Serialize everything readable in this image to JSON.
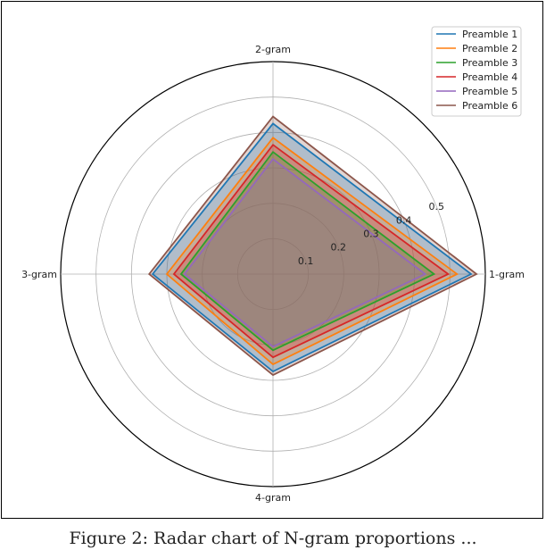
{
  "caption": "Figure 2: Radar chart of N-gram proportions ...",
  "chart_data": {
    "type": "radar",
    "title": "",
    "axes": [
      "1-gram",
      "2-gram",
      "3-gram",
      "4-gram"
    ],
    "radial_ticks": [
      "0.1",
      "0.2",
      "0.3",
      "0.4",
      "0.5"
    ],
    "radial_tick_values": [
      0.1,
      0.2,
      0.3,
      0.4,
      0.5
    ],
    "rmax": 0.6,
    "grid": true,
    "legend_position": "top-right",
    "series": [
      {
        "name": "Preamble 1",
        "color": "#1f77b4",
        "values": [
          0.56,
          0.425,
          0.34,
          0.275
        ]
      },
      {
        "name": "Preamble 2",
        "color": "#ff7f0e",
        "values": [
          0.52,
          0.385,
          0.3,
          0.255
        ]
      },
      {
        "name": "Preamble 3",
        "color": "#2ca02c",
        "values": [
          0.455,
          0.345,
          0.26,
          0.215
        ]
      },
      {
        "name": "Preamble 4",
        "color": "#d62728",
        "values": [
          0.495,
          0.365,
          0.28,
          0.235
        ]
      },
      {
        "name": "Preamble 5",
        "color": "#9467bd",
        "values": [
          0.43,
          0.325,
          0.25,
          0.205
        ]
      },
      {
        "name": "Preamble 6",
        "color": "#8c564b",
        "values": [
          0.575,
          0.445,
          0.35,
          0.285
        ]
      }
    ]
  }
}
